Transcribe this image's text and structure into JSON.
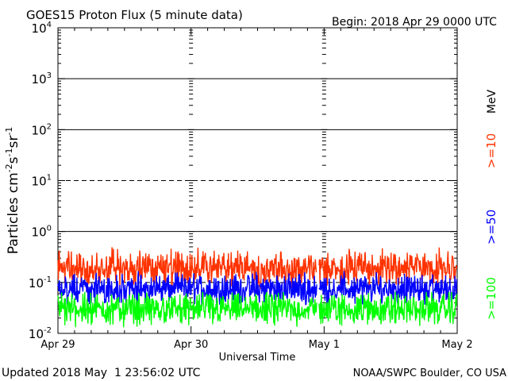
{
  "chart_data": {
    "type": "line",
    "title": "GOES15 Proton Flux (5 minute data)",
    "begin_label": "Begin: 2018 Apr 29 0000 UTC",
    "xlabel": "Universal Time",
    "ylabel": "Particles cm-2s-1sr-1",
    "y_scale": "log",
    "ylim": [
      0.01,
      10000
    ],
    "y_ticks": [
      {
        "base": "10",
        "exp": "4",
        "value": 10000
      },
      {
        "base": "10",
        "exp": "3",
        "value": 1000
      },
      {
        "base": "10",
        "exp": "2",
        "value": 100
      },
      {
        "base": "10",
        "exp": "1",
        "value": 10
      },
      {
        "base": "10",
        "exp": "0",
        "value": 1
      },
      {
        "base": "10",
        "exp": "-1",
        "value": 0.1
      },
      {
        "base": "10",
        "exp": "-2",
        "value": 0.01
      }
    ],
    "x_ticks": [
      "Apr 29",
      "Apr 30",
      "May 1",
      "May 2"
    ],
    "xlim_days": [
      0,
      3
    ],
    "threshold_lines": [
      {
        "value": 1000,
        "style": "solid"
      },
      {
        "value": 100,
        "style": "solid"
      },
      {
        "value": 10,
        "style": "dashed"
      },
      {
        "value": 1,
        "style": "solid"
      },
      {
        "value": 0.1,
        "style": "dashed"
      }
    ],
    "grid": false,
    "data_gap_days": [
      1.945,
      1.96
    ],
    "units_label": "MeV",
    "series": [
      {
        "name": ">=10",
        "color": "#ff3300",
        "level": 0.19,
        "spread": 0.42,
        "spike_max": 0.5
      },
      {
        "name": ">=50",
        "color": "#0000ff",
        "level": 0.075,
        "spread": 0.36,
        "spike_max": 0.17
      },
      {
        "name": ">=100",
        "color": "#00ff00",
        "level": 0.03,
        "spread": 0.38,
        "spike_max": 0.065
      }
    ]
  },
  "footer": {
    "updated": "Updated 2018 May  1 23:56:02 UTC",
    "credit": "NOAA/SWPC Boulder, CO USA"
  }
}
